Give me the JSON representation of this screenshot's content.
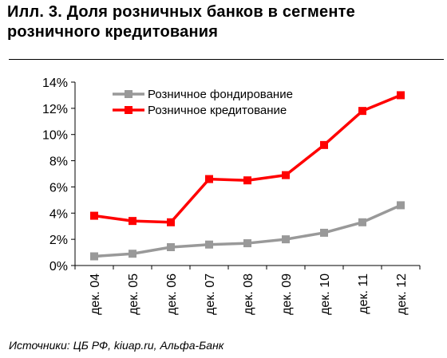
{
  "header": {
    "title_line1": "Илл. 3. Доля розничных банков в сегменте",
    "title_line2": "розничного кредитования"
  },
  "source_note": "Источники: ЦБ РФ, kiuap.ru, Альфа-Банк",
  "chart_data": {
    "type": "line",
    "categories": [
      "дек. 04",
      "дек. 05",
      "дек. 06",
      "дек. 07",
      "дек. 08",
      "дек. 09",
      "дек. 10",
      "дек. 11",
      "дек. 12"
    ],
    "series": [
      {
        "name": "Розничное фондирование",
        "color": "#999999",
        "marker": "square",
        "values": [
          0.7,
          0.9,
          1.4,
          1.6,
          1.7,
          2.0,
          2.5,
          3.3,
          4.6
        ]
      },
      {
        "name": "Розничное кредитование",
        "color": "#ff0000",
        "marker": "square",
        "values": [
          3.8,
          3.4,
          3.3,
          6.6,
          6.5,
          6.9,
          9.2,
          11.8,
          13.0
        ]
      }
    ],
    "y_ticks": [
      0,
      2,
      4,
      6,
      8,
      10,
      12,
      14
    ],
    "y_tick_labels": [
      "0%",
      "2%",
      "4%",
      "6%",
      "8%",
      "10%",
      "12%",
      "14%"
    ],
    "ylim": [
      0,
      14
    ],
    "ylabel": "",
    "xlabel": "",
    "grid": false,
    "legend_position": "top-left"
  }
}
